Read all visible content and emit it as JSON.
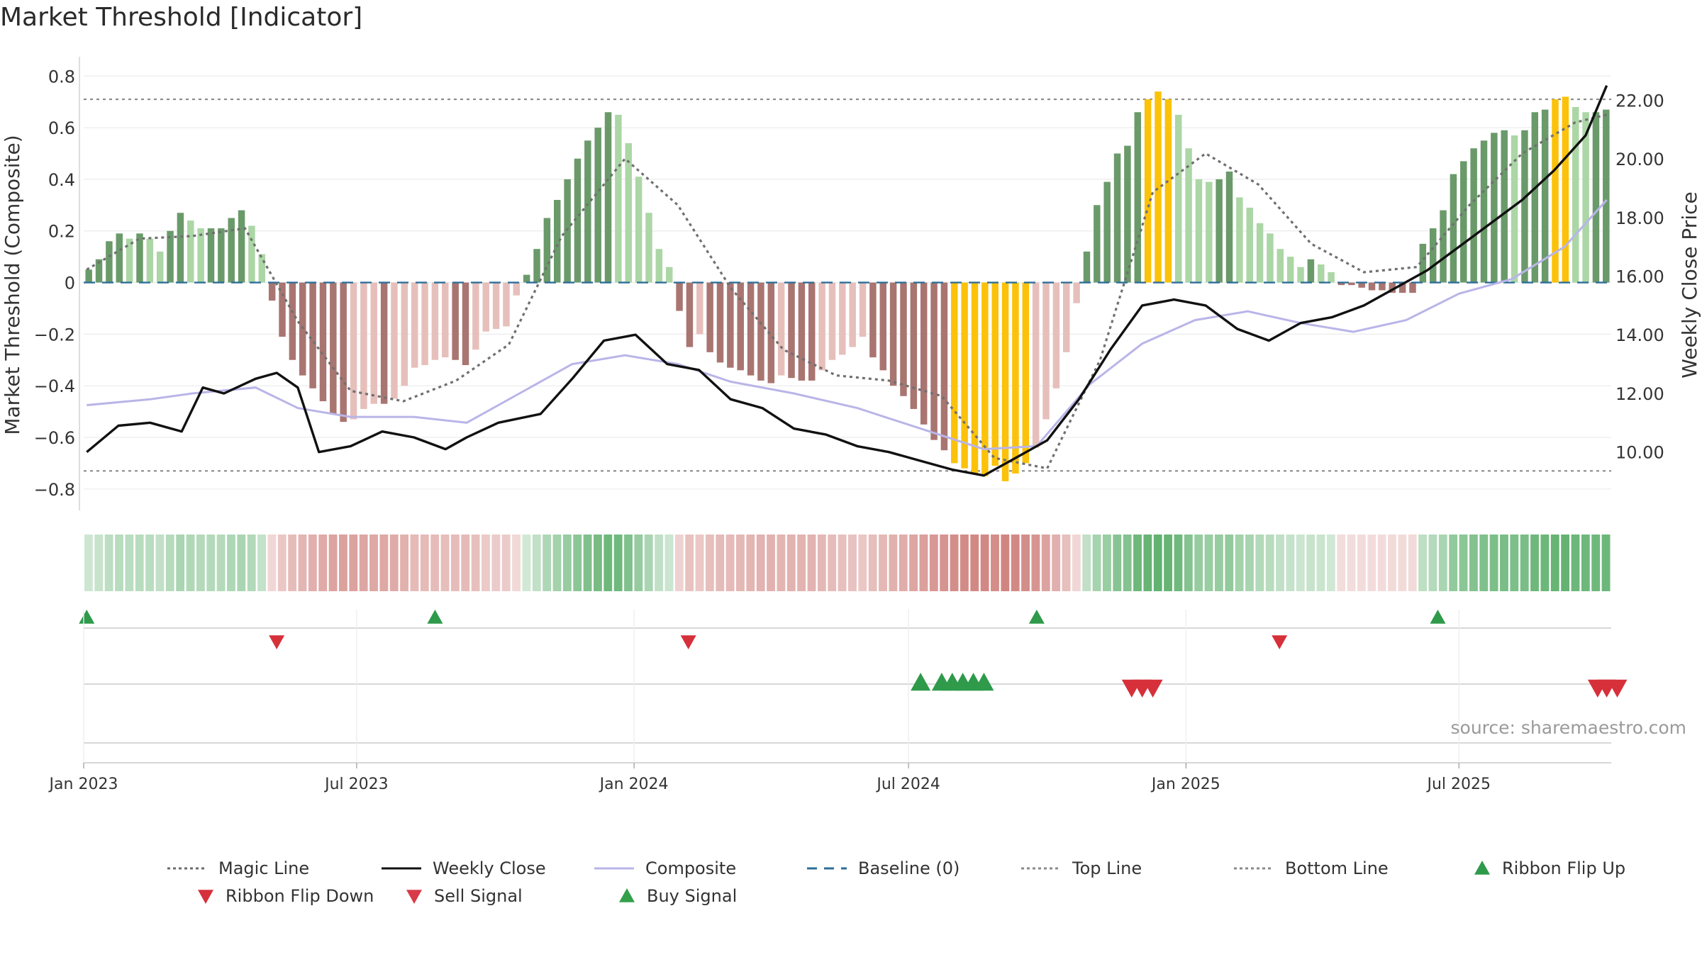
{
  "title": "Market Threshold [Indicator]",
  "source": "source: sharemaestro.com",
  "colors": {
    "strong_green": "#6a9a6a",
    "light_green": "#acd6a6",
    "strong_red": "#a97571",
    "light_red": "#e6bfbb",
    "gold": "#fbc209",
    "close": "#111111",
    "composite": "#b9b5e8",
    "magic": "#707070",
    "baseline": "#2e6e98",
    "buy": "#2e9a4a",
    "sell": "#d6303a"
  },
  "chart_data": {
    "type": "bar",
    "x_axis": {
      "ticks": [
        "Jan 2023",
        "Jul 2023",
        "Jan 2024",
        "Jul 2024",
        "Jan 2025",
        "Jul 2025"
      ],
      "range": [
        "2023-01-01",
        "2025-10-10"
      ]
    },
    "left_axis": {
      "label": "Market Threshold (Composite)",
      "range": [
        -0.85,
        0.82
      ],
      "ticks": [
        "0.8",
        "0.6",
        "0.4",
        "0.2",
        "0",
        "−0.2",
        "−0.4",
        "−0.6",
        "−0.8"
      ]
    },
    "right_axis": {
      "label": "Weekly Close Price",
      "range": [
        8.3,
        23.0
      ],
      "ticks": [
        "22.00",
        "20.00",
        "18.00",
        "16.00",
        "14.00",
        "12.00",
        "10.00"
      ]
    },
    "top_line": 0.71,
    "bottom_line": -0.73,
    "bars": [
      {
        "period": "2023-01",
        "values": [
          0.05,
          0.09,
          0.16,
          0.19,
          0.17
        ]
      },
      {
        "period": "2023-02",
        "values": [
          0.19,
          0.17,
          0.12,
          0.2,
          0.27
        ]
      },
      {
        "period": "2023-03",
        "values": [
          0.24,
          0.21,
          0.21,
          0.21,
          0.25
        ]
      },
      {
        "period": "2023-04",
        "values": [
          0.28,
          0.22,
          0.11,
          -0.07,
          -0.21
        ]
      },
      {
        "period": "2023-05",
        "values": [
          -0.3,
          -0.36,
          -0.41,
          -0.46,
          -0.51
        ]
      },
      {
        "period": "2023-06",
        "values": [
          -0.54,
          -0.53,
          -0.49,
          -0.47,
          -0.47
        ]
      },
      {
        "period": "2023-07",
        "values": [
          -0.45,
          -0.4,
          -0.33,
          -0.32,
          -0.3
        ]
      },
      {
        "period": "2023-08",
        "values": [
          -0.29,
          -0.3,
          -0.32,
          -0.26,
          -0.19
        ]
      },
      {
        "period": "2023-09",
        "values": [
          -0.18,
          -0.17,
          -0.05,
          0.03,
          0.13
        ]
      },
      {
        "period": "2023-10",
        "values": [
          0.25,
          0.32,
          0.4,
          0.48,
          0.55
        ]
      },
      {
        "period": "2023-11",
        "values": [
          0.6,
          0.66,
          0.65,
          0.54,
          0.41
        ]
      },
      {
        "period": "2023-12",
        "values": [
          0.27,
          0.13,
          0.06,
          -0.11,
          -0.25
        ]
      },
      {
        "period": "2024-01",
        "values": [
          -0.2,
          -0.27,
          -0.31,
          -0.33,
          -0.34
        ]
      },
      {
        "period": "2024-02",
        "values": [
          -0.36,
          -0.38,
          -0.39,
          -0.36,
          -0.37
        ]
      },
      {
        "period": "2024-03",
        "values": [
          -0.38,
          -0.38,
          -0.34,
          -0.3,
          -0.28
        ]
      },
      {
        "period": "2024-04",
        "values": [
          -0.25,
          -0.21,
          -0.29,
          -0.34,
          -0.4
        ]
      },
      {
        "period": "2024-05",
        "values": [
          -0.44,
          -0.49,
          -0.55,
          -0.61,
          -0.65
        ]
      },
      {
        "period": "2024-06",
        "values": [
          -0.7,
          -0.72,
          -0.74,
          -0.75,
          -0.71
        ]
      },
      {
        "period": "2024-07",
        "values": [
          -0.77,
          -0.74,
          -0.7,
          -0.64,
          -0.53
        ]
      },
      {
        "period": "2024-08",
        "values": [
          -0.41,
          -0.27,
          -0.08,
          0.12,
          0.3
        ]
      },
      {
        "period": "2024-09",
        "values": [
          0.39,
          0.5,
          0.53,
          0.66,
          0.71
        ]
      },
      {
        "period": "2024-10",
        "values": [
          0.74,
          0.71,
          0.65,
          0.52,
          0.4
        ]
      },
      {
        "period": "2024-11",
        "values": [
          0.39,
          0.4,
          0.43,
          0.33,
          0.29
        ]
      },
      {
        "period": "2024-12",
        "values": [
          0.23,
          0.19,
          0.13,
          0.1,
          0.06
        ]
      },
      {
        "period": "2025-01",
        "values": [
          0.09,
          0.07,
          0.04,
          -0.01,
          -0.01
        ]
      },
      {
        "period": "2025-02",
        "values": [
          -0.02,
          -0.03,
          -0.03,
          -0.04,
          -0.04
        ]
      },
      {
        "period": "2025-03",
        "values": [
          -0.04,
          0.15,
          0.21,
          0.28,
          0.42
        ]
      },
      {
        "period": "2025-04",
        "values": [
          0.47,
          0.52,
          0.55,
          0.58,
          0.59
        ]
      },
      {
        "period": "2025-05",
        "values": [
          0.57,
          0.59,
          0.66,
          0.67,
          0.71
        ]
      },
      {
        "period": "2025-06",
        "values": [
          0.72,
          0.68,
          0.66,
          0.66,
          0.67
        ]
      }
    ],
    "series": [
      {
        "name": "Weekly Close",
        "axis": "right",
        "points": [
          [
            "2023-01-03",
            10.0
          ],
          [
            "2023-01-24",
            10.9
          ],
          [
            "2023-02-14",
            11.0
          ],
          [
            "2023-03-07",
            10.7
          ],
          [
            "2023-03-21",
            12.2
          ],
          [
            "2023-04-04",
            12.0
          ],
          [
            "2023-04-25",
            12.5
          ],
          [
            "2023-05-09",
            12.7
          ],
          [
            "2023-05-23",
            12.2
          ],
          [
            "2023-06-06",
            10.0
          ],
          [
            "2023-06-27",
            10.2
          ],
          [
            "2023-07-18",
            10.7
          ],
          [
            "2023-08-08",
            10.5
          ],
          [
            "2023-08-29",
            10.1
          ],
          [
            "2023-09-12",
            10.5
          ],
          [
            "2023-10-03",
            11.0
          ],
          [
            "2023-10-31",
            11.3
          ],
          [
            "2023-11-21",
            12.5
          ],
          [
            "2023-12-12",
            13.8
          ],
          [
            "2024-01-02",
            14.0
          ],
          [
            "2024-01-23",
            13.0
          ],
          [
            "2024-02-13",
            12.8
          ],
          [
            "2024-03-05",
            11.8
          ],
          [
            "2024-03-26",
            11.5
          ],
          [
            "2024-04-16",
            10.8
          ],
          [
            "2024-05-07",
            10.6
          ],
          [
            "2024-05-28",
            10.2
          ],
          [
            "2024-06-18",
            10.0
          ],
          [
            "2024-07-09",
            9.7
          ],
          [
            "2024-07-30",
            9.4
          ],
          [
            "2024-08-20",
            9.2
          ],
          [
            "2024-09-10",
            9.8
          ],
          [
            "2024-10-01",
            10.4
          ],
          [
            "2024-10-22",
            11.8
          ],
          [
            "2024-11-12",
            13.5
          ],
          [
            "2024-12-03",
            15.0
          ],
          [
            "2024-12-24",
            15.2
          ],
          [
            "2025-01-14",
            15.0
          ],
          [
            "2025-02-04",
            14.2
          ],
          [
            "2025-02-25",
            13.8
          ],
          [
            "2025-03-18",
            14.4
          ],
          [
            "2025-04-08",
            14.6
          ],
          [
            "2025-04-29",
            15.0
          ],
          [
            "2025-05-20",
            15.6
          ],
          [
            "2025-06-10",
            16.2
          ],
          [
            "2025-07-01",
            17.0
          ],
          [
            "2025-07-22",
            17.8
          ],
          [
            "2025-08-12",
            18.6
          ],
          [
            "2025-09-02",
            19.6
          ],
          [
            "2025-09-23",
            20.8
          ],
          [
            "2025-10-07",
            22.5
          ]
        ]
      },
      {
        "name": "Composite",
        "axis": "right",
        "points": [
          [
            "2023-01-03",
            11.6
          ],
          [
            "2023-02-14",
            11.8
          ],
          [
            "2023-03-14",
            12.0
          ],
          [
            "2023-04-25",
            12.2
          ],
          [
            "2023-05-23",
            11.5
          ],
          [
            "2023-06-27",
            11.2
          ],
          [
            "2023-08-08",
            11.2
          ],
          [
            "2023-09-12",
            11.0
          ],
          [
            "2023-10-17",
            12.0
          ],
          [
            "2023-11-21",
            13.0
          ],
          [
            "2023-12-26",
            13.3
          ],
          [
            "2024-01-30",
            13.0
          ],
          [
            "2024-03-05",
            12.4
          ],
          [
            "2024-04-16",
            12.0
          ],
          [
            "2024-05-28",
            11.5
          ],
          [
            "2024-07-09",
            10.8
          ],
          [
            "2024-08-20",
            10.1
          ],
          [
            "2024-09-24",
            10.2
          ],
          [
            "2024-10-29",
            12.3
          ],
          [
            "2024-12-03",
            13.7
          ],
          [
            "2025-01-07",
            14.5
          ],
          [
            "2025-02-11",
            14.8
          ],
          [
            "2025-03-18",
            14.4
          ],
          [
            "2025-04-22",
            14.1
          ],
          [
            "2025-05-27",
            14.5
          ],
          [
            "2025-07-01",
            15.4
          ],
          [
            "2025-08-05",
            15.9
          ],
          [
            "2025-09-09",
            17.0
          ],
          [
            "2025-10-07",
            18.6
          ]
        ]
      },
      {
        "name": "Magic Line",
        "axis": "left",
        "points": [
          [
            "2023-01-03",
            0.05
          ],
          [
            "2023-02-07",
            0.17
          ],
          [
            "2023-03-14",
            0.18
          ],
          [
            "2023-04-18",
            0.21
          ],
          [
            "2023-05-23",
            -0.15
          ],
          [
            "2023-06-27",
            -0.42
          ],
          [
            "2023-08-01",
            -0.46
          ],
          [
            "2023-09-05",
            -0.38
          ],
          [
            "2023-10-10",
            -0.24
          ],
          [
            "2023-11-14",
            0.18
          ],
          [
            "2023-12-26",
            0.48
          ],
          [
            "2024-01-30",
            0.3
          ],
          [
            "2024-03-05",
            -0.02
          ],
          [
            "2024-04-09",
            -0.26
          ],
          [
            "2024-05-14",
            -0.36
          ],
          [
            "2024-06-18",
            -0.38
          ],
          [
            "2024-07-23",
            -0.44
          ],
          [
            "2024-08-27",
            -0.68
          ],
          [
            "2024-10-01",
            -0.72
          ],
          [
            "2024-11-05",
            -0.3
          ],
          [
            "2024-12-10",
            0.35
          ],
          [
            "2025-01-14",
            0.5
          ],
          [
            "2025-02-18",
            0.38
          ],
          [
            "2025-03-25",
            0.15
          ],
          [
            "2025-04-29",
            0.04
          ],
          [
            "2025-06-03",
            0.06
          ],
          [
            "2025-07-08",
            0.3
          ],
          [
            "2025-08-12",
            0.5
          ],
          [
            "2025-09-16",
            0.62
          ],
          [
            "2025-10-07",
            0.65
          ]
        ]
      }
    ],
    "ribbon_flips_up": [
      "2023-01-03",
      "2023-08-22",
      "2024-09-24",
      "2025-06-17"
    ],
    "ribbon_flips_down": [
      "2023-05-09",
      "2024-02-06",
      "2025-03-04"
    ],
    "buy_signals": [
      "2024-07-09",
      "2024-07-23",
      "2024-07-30",
      "2024-08-06",
      "2024-08-13",
      "2024-08-20"
    ],
    "sell_signals": [
      "2024-11-26",
      "2024-12-03",
      "2024-12-10",
      "2025-10-01",
      "2025-10-07",
      "2025-10-14"
    ],
    "legend": [
      {
        "label": "Magic Line",
        "kind": "dotted",
        "color": "#6b6b6b"
      },
      {
        "label": "Weekly Close",
        "kind": "solid",
        "color": "#111111"
      },
      {
        "label": "Composite",
        "kind": "solid",
        "color": "#b9b5e8"
      },
      {
        "label": "Baseline (0)",
        "kind": "dashed",
        "color": "#2e6e98"
      },
      {
        "label": "Top Line",
        "kind": "dotted",
        "color": "#8a8a8a"
      },
      {
        "label": "Bottom Line",
        "kind": "dotted",
        "color": "#8a8a8a"
      },
      {
        "label": "Ribbon Flip Up",
        "kind": "tri-up",
        "color": "#2e9a4a"
      },
      {
        "label": "Ribbon Flip Down",
        "kind": "tri-down",
        "color": "#d6303a"
      },
      {
        "label": "Sell Signal",
        "kind": "tri-down",
        "color": "#d83a48"
      },
      {
        "label": "Buy Signal",
        "kind": "tri-up",
        "color": "#34a04c"
      }
    ]
  }
}
